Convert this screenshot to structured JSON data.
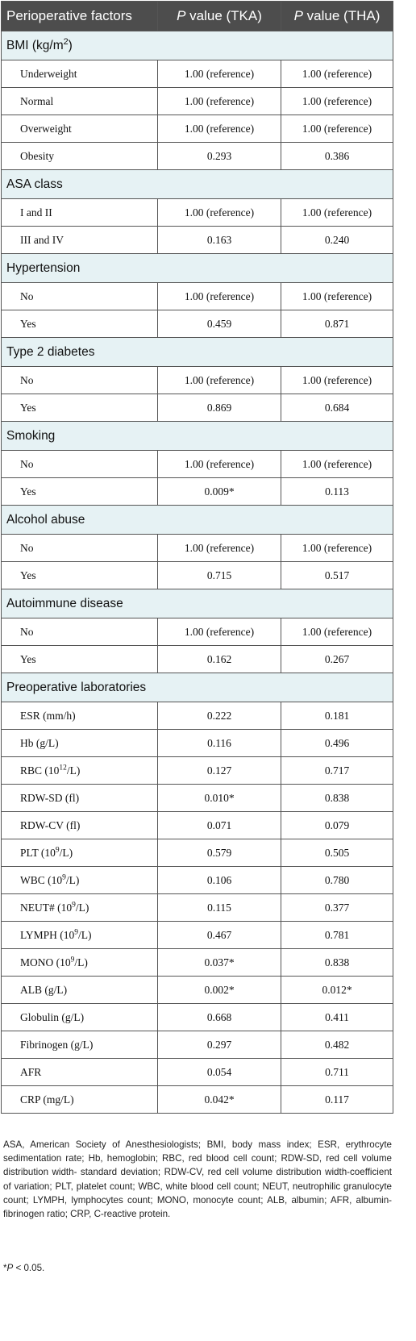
{
  "header": {
    "col1": "Perioperative factors",
    "col2_italic": "P",
    "col2_rest": " value (TKA)",
    "col3_italic": "P",
    "col3_rest": " value (THA)"
  },
  "sections": [
    {
      "title": "BMI (kg/m",
      "title_sup": "2",
      "title_after": ")",
      "rows": [
        {
          "label": "Underweight",
          "tka": "1.00 (reference)",
          "tha": "1.00 (reference)"
        },
        {
          "label": "Normal",
          "tka": "1.00 (reference)",
          "tha": "1.00 (reference)"
        },
        {
          "label": "Overweight",
          "tka": "1.00 (reference)",
          "tha": "1.00 (reference)"
        },
        {
          "label": "Obesity",
          "tka": "0.293",
          "tha": "0.386"
        }
      ]
    },
    {
      "title": "ASA class",
      "rows": [
        {
          "label": "I and II",
          "tka": "1.00 (reference)",
          "tha": "1.00 (reference)"
        },
        {
          "label": "III and IV",
          "tka": "0.163",
          "tha": "0.240"
        }
      ]
    },
    {
      "title": "Hypertension",
      "rows": [
        {
          "label": "No",
          "tka": "1.00 (reference)",
          "tha": "1.00 (reference)"
        },
        {
          "label": "Yes",
          "tka": "0.459",
          "tha": "0.871"
        }
      ]
    },
    {
      "title": "Type 2 diabetes",
      "rows": [
        {
          "label": "No",
          "tka": "1.00 (reference)",
          "tha": "1.00 (reference)"
        },
        {
          "label": "Yes",
          "tka": "0.869",
          "tha": "0.684"
        }
      ]
    },
    {
      "title": "Smoking",
      "rows": [
        {
          "label": "No",
          "tka": "1.00 (reference)",
          "tha": "1.00 (reference)"
        },
        {
          "label": "Yes",
          "tka": "0.009*",
          "tha": "0.113"
        }
      ]
    },
    {
      "title": "Alcohol abuse",
      "rows": [
        {
          "label": "No",
          "tka": "1.00 (reference)",
          "tha": "1.00 (reference)"
        },
        {
          "label": "Yes",
          "tka": "0.715",
          "tha": "0.517"
        }
      ]
    },
    {
      "title": "Autoimmune disease",
      "rows": [
        {
          "label": "No",
          "tka": "1.00 (reference)",
          "tha": "1.00 (reference)"
        },
        {
          "label": "Yes",
          "tka": "0.162",
          "tha": "0.267"
        }
      ]
    },
    {
      "title": "Preoperative laboratories",
      "rows": [
        {
          "label": "ESR (mm/h)",
          "tka": "0.222",
          "tha": "0.181"
        },
        {
          "label": "Hb (g/L)",
          "tka": "0.116",
          "tha": "0.496"
        },
        {
          "label": "RBC (10",
          "sup": "12",
          "label_after": "/L)",
          "tka": "0.127",
          "tha": "0.717"
        },
        {
          "label": "RDW-SD (fl)",
          "tka": "0.010*",
          "tha": "0.838"
        },
        {
          "label": "RDW-CV (fl)",
          "tka": "0.071",
          "tha": "0.079"
        },
        {
          "label": "PLT (10",
          "sup": "9",
          "label_after": "/L)",
          "tka": "0.579",
          "tha": "0.505"
        },
        {
          "label": "WBC (10",
          "sup": "9",
          "label_after": "/L)",
          "tka": "0.106",
          "tha": "0.780"
        },
        {
          "label": "NEUT# (10",
          "sup": "9",
          "label_after": "/L)",
          "tka": "0.115",
          "tha": "0.377"
        },
        {
          "label": "LYMPH (10",
          "sup": "9",
          "label_after": "/L)",
          "tka": "0.467",
          "tha": "0.781"
        },
        {
          "label": "MONO (10",
          "sup": "9",
          "label_after": "/L)",
          "tka": "0.037*",
          "tha": "0.838"
        },
        {
          "label": "ALB (g/L)",
          "tka": "0.002*",
          "tha": "0.012*"
        },
        {
          "label": "Globulin (g/L)",
          "tka": "0.668",
          "tha": "0.411"
        },
        {
          "label": "Fibrinogen (g/L)",
          "tka": "0.297",
          "tha": "0.482"
        },
        {
          "label": "AFR",
          "tka": "0.054",
          "tha": "0.711"
        },
        {
          "label": "CRP (mg/L)",
          "tka": "0.042*",
          "tha": "0.117"
        }
      ]
    }
  ],
  "footnote": "ASA, American Society of Anesthesiologists; BMI, body mass index; ESR, erythrocyte sedimentation rate; Hb, hemoglobin; RBC, red blood cell count; RDW-SD, red cell volume distribution width- standard deviation; RDW-CV, red cell volume distribution width-coefficient of variation; PLT, platelet count; WBC, white blood cell count; NEUT, neutrophilic granulocyte count; LYMPH, lymphocytes count; MONO, monocyte count; ALB, albumin; AFR, albumin-fibrinogen ratio; CRP, C-reactive protein.",
  "significance": {
    "star": "*",
    "p": "P",
    "rest": " < 0.05."
  }
}
